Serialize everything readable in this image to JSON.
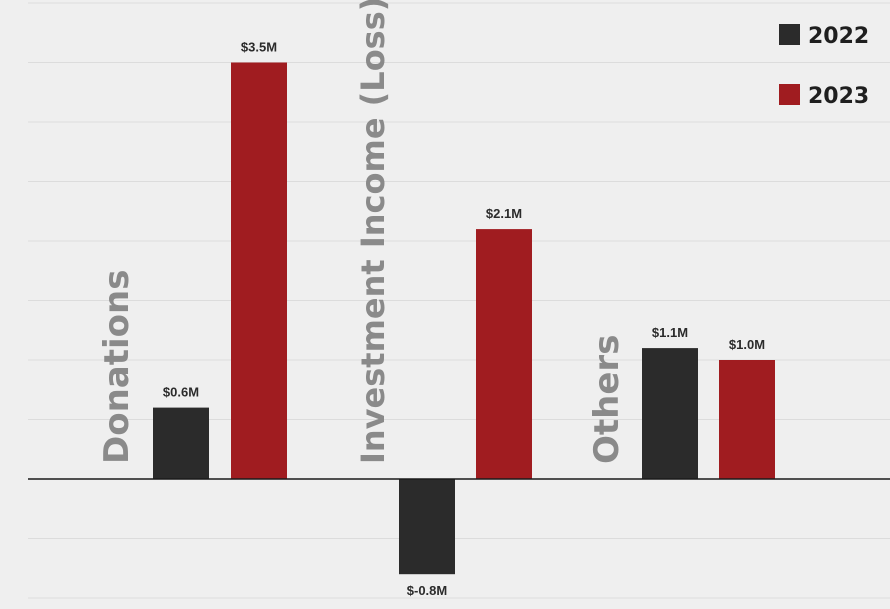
{
  "chart_data": {
    "type": "bar",
    "categories": [
      "Donations",
      "Investment Income (Loss)",
      "Others"
    ],
    "series": [
      {
        "name": "2022",
        "color": "#2b2b2b",
        "values": [
          0.6,
          -0.8,
          1.1
        ],
        "labels": [
          "$0.6M",
          "$-0.8M",
          "$1.1M"
        ]
      },
      {
        "name": "2023",
        "color": "#a01c20",
        "values": [
          3.5,
          2.1,
          1.0
        ],
        "labels": [
          "$3.5M",
          "$2.1M",
          "$1.0M"
        ]
      }
    ],
    "ylim": [
      -1.0,
      4.0
    ],
    "grid": true,
    "legend": "top-right"
  }
}
